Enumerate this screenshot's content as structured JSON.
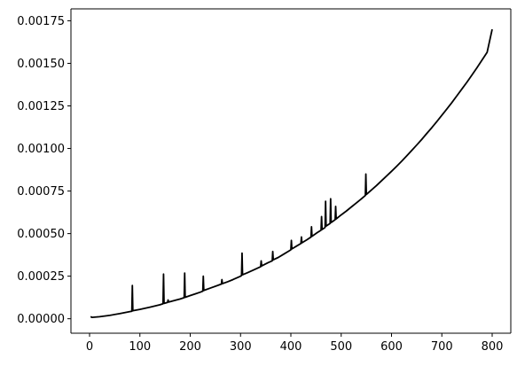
{
  "chart_data": {
    "type": "line",
    "title": "",
    "xlabel": "",
    "ylabel": "",
    "xlim": [
      -37,
      837
    ],
    "ylim": [
      -8.5e-05,
      0.00182
    ],
    "grid": false,
    "legend": "none",
    "line_color": "#000000",
    "x_ticks": [
      {
        "value": 0,
        "label": "0"
      },
      {
        "value": 100,
        "label": "100"
      },
      {
        "value": 200,
        "label": "200"
      },
      {
        "value": 300,
        "label": "300"
      },
      {
        "value": 400,
        "label": "400"
      },
      {
        "value": 500,
        "label": "500"
      },
      {
        "value": 600,
        "label": "600"
      },
      {
        "value": 700,
        "label": "700"
      },
      {
        "value": 800,
        "label": "800"
      }
    ],
    "y_ticks": [
      {
        "value": 0,
        "label": "0.00000"
      },
      {
        "value": 0.00025,
        "label": "0.00025"
      },
      {
        "value": 0.0005,
        "label": "0.00050"
      },
      {
        "value": 0.00075,
        "label": "0.00075"
      },
      {
        "value": 0.001,
        "label": "0.00100"
      },
      {
        "value": 0.00125,
        "label": "0.00125"
      },
      {
        "value": 0.0015,
        "label": "0.00150"
      },
      {
        "value": 0.00175,
        "label": "0.00175"
      }
    ],
    "series": [
      {
        "color": "#000000",
        "points": [
          [
            2,
            1.2e-05
          ],
          [
            5,
            8e-06
          ],
          [
            20,
            1.2e-05
          ],
          [
            40,
            2e-05
          ],
          [
            60,
            3e-05
          ],
          [
            80,
            4.2e-05
          ],
          [
            84,
            4.4e-05
          ],
          [
            85,
            0.000195
          ],
          [
            86,
            4.7e-05
          ],
          [
            100,
            5.5e-05
          ],
          [
            120,
            6.8e-05
          ],
          [
            140,
            8.2e-05
          ],
          [
            146,
            8.8e-05
          ],
          [
            147,
            0.000262
          ],
          [
            148,
            9e-05
          ],
          [
            155,
            9.6e-05
          ],
          [
            156,
            0.00011
          ],
          [
            157,
            9.8e-05
          ],
          [
            170,
            0.000108
          ],
          [
            180,
            0.000116
          ],
          [
            188,
            0.000124
          ],
          [
            189,
            0.000268
          ],
          [
            190,
            0.000126
          ],
          [
            200,
            0.000136
          ],
          [
            210,
            0.000146
          ],
          [
            220,
            0.000156
          ],
          [
            225,
            0.000162
          ],
          [
            226,
            0.00025
          ],
          [
            227,
            0.000166
          ],
          [
            240,
            0.00018
          ],
          [
            255,
            0.000196
          ],
          [
            262,
            0.000204
          ],
          [
            263,
            0.00023
          ],
          [
            264,
            0.000206
          ],
          [
            275,
            0.000218
          ],
          [
            285,
            0.00023
          ],
          [
            300,
            0.00025
          ],
          [
            302,
            0.000254
          ],
          [
            303,
            0.000385
          ],
          [
            304,
            0.000258
          ],
          [
            315,
            0.000272
          ],
          [
            330,
            0.000292
          ],
          [
            340,
            0.000306
          ],
          [
            341,
            0.00034
          ],
          [
            342,
            0.00031
          ],
          [
            355,
            0.00033
          ],
          [
            363,
            0.00034
          ],
          [
            364,
            0.000395
          ],
          [
            365,
            0.000346
          ],
          [
            375,
            0.00036
          ],
          [
            385,
            0.000378
          ],
          [
            395,
            0.000396
          ],
          [
            400,
            0.000405
          ],
          [
            401,
            0.00046
          ],
          [
            402,
            0.00041
          ],
          [
            412,
            0.000428
          ],
          [
            420,
            0.000442
          ],
          [
            421,
            0.00048
          ],
          [
            422,
            0.000446
          ],
          [
            432,
            0.000464
          ],
          [
            440,
            0.00048
          ],
          [
            441,
            0.00054
          ],
          [
            442,
            0.000484
          ],
          [
            452,
            0.000505
          ],
          [
            460,
            0.00052
          ],
          [
            461,
            0.0006
          ],
          [
            462,
            0.000524
          ],
          [
            468,
            0.000536
          ],
          [
            469,
            0.00069
          ],
          [
            470,
            0.000544
          ],
          [
            478,
            0.00056
          ],
          [
            479,
            0.000705
          ],
          [
            480,
            0.000565
          ],
          [
            488,
            0.000582
          ],
          [
            489,
            0.00066
          ],
          [
            490,
            0.000586
          ],
          [
            500,
            0.00061
          ],
          [
            510,
            0.000632
          ],
          [
            520,
            0.000656
          ],
          [
            530,
            0.00068
          ],
          [
            540,
            0.000704
          ],
          [
            548,
            0.000724
          ],
          [
            549,
            0.00085
          ],
          [
            550,
            0.00073
          ],
          [
            560,
            0.000756
          ],
          [
            570,
            0.000782
          ],
          [
            580,
            0.00081
          ],
          [
            590,
            0.000838
          ],
          [
            600,
            0.000866
          ],
          [
            610,
            0.000895
          ],
          [
            620,
            0.000925
          ],
          [
            630,
            0.000956
          ],
          [
            640,
            0.000988
          ],
          [
            650,
            0.00102
          ],
          [
            660,
            0.001053
          ],
          [
            670,
            0.001088
          ],
          [
            680,
            0.001122
          ],
          [
            690,
            0.001158
          ],
          [
            700,
            0.001195
          ],
          [
            710,
            0.001232
          ],
          [
            720,
            0.00127
          ],
          [
            730,
            0.00131
          ],
          [
            740,
            0.00135
          ],
          [
            750,
            0.00139
          ],
          [
            760,
            0.001432
          ],
          [
            770,
            0.001475
          ],
          [
            780,
            0.00152
          ],
          [
            790,
            0.001565
          ],
          [
            800,
            0.0017
          ]
        ]
      }
    ]
  }
}
